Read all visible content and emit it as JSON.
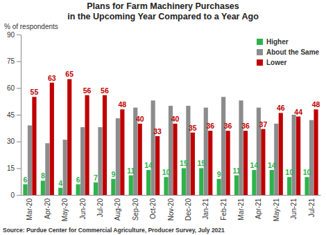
{
  "chart_data": {
    "type": "bar",
    "title": [
      "Plans for Farm Machinery Purchases",
      "in the Upcoming Year Compared to a Year Ago"
    ],
    "y_label": "% of respondents",
    "source": "Source: Purdue Center for Commercial Agriculture, Producer Survey, July 2021",
    "categories": [
      "Mar-20",
      "Apr-20",
      "May-20",
      "Jun-20",
      "Jul-20",
      "Aug-20",
      "Sep-20",
      "Oct-20",
      "Nov-20",
      "Dec-20",
      "Jan-21",
      "Feb-21",
      "Mar-21",
      "Apr-21",
      "May-21",
      "Jun-21",
      "Jul-21"
    ],
    "series": [
      {
        "name": "Higher",
        "color": "#2db34a",
        "data_labels": true,
        "values": [
          6,
          8,
          4,
          6,
          7,
          9,
          11,
          14,
          10,
          15,
          15,
          9,
          11,
          14,
          14,
          10,
          10
        ]
      },
      {
        "name": "About the Same",
        "color": "#8c8c8c",
        "data_labels": false,
        "values": [
          39,
          29,
          31,
          38,
          38,
          43,
          49,
          53,
          50,
          50,
          49,
          55,
          53,
          49,
          40,
          45,
          42
        ]
      },
      {
        "name": "Lower",
        "color": "#c00000",
        "data_labels": true,
        "values": [
          55,
          63,
          65,
          56,
          56,
          48,
          40,
          33,
          40,
          35,
          36,
          36,
          36,
          37,
          46,
          44,
          48
        ]
      }
    ],
    "ylim": [
      0,
      90
    ],
    "yticks": [
      0,
      15,
      30,
      45,
      60,
      75,
      90
    ],
    "grid": false,
    "legend": "upper right"
  }
}
